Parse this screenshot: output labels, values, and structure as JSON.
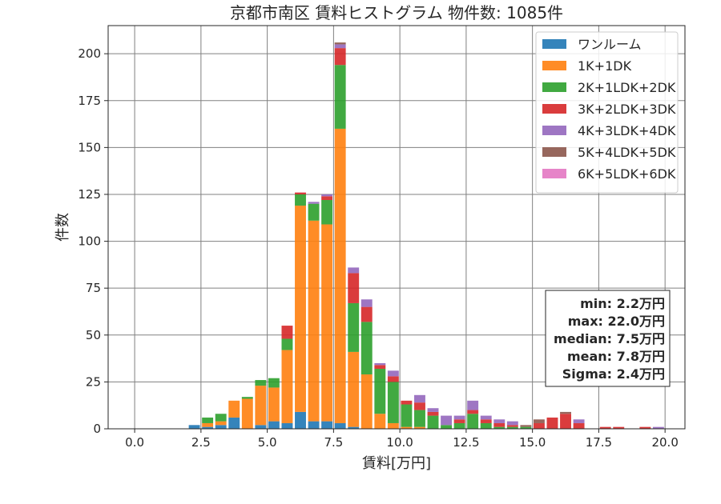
{
  "chart_data": {
    "type": "bar",
    "stacked": true,
    "title": "京都市南区 賃料ヒストグラム 物件数: 1085件",
    "xlabel": "賃料[万円]",
    "ylabel": "件数",
    "xlim": [
      -1.0,
      20.75
    ],
    "ylim": [
      0,
      215
    ],
    "xticks": [
      0.0,
      2.5,
      5.0,
      7.5,
      10.0,
      12.5,
      15.0,
      17.5,
      20.0
    ],
    "xtick_labels": [
      "0.0",
      "2.5",
      "5.0",
      "7.5",
      "10.0",
      "12.5",
      "15.0",
      "17.5",
      "20.0"
    ],
    "yticks": [
      0,
      25,
      50,
      75,
      100,
      125,
      150,
      175,
      200
    ],
    "ytick_labels": [
      "0",
      "25",
      "50",
      "75",
      "100",
      "125",
      "150",
      "175",
      "200"
    ],
    "bin_width": 0.5,
    "bins": [
      0.0,
      0.5,
      1.0,
      1.5,
      2.0,
      2.5,
      3.0,
      3.5,
      4.0,
      4.5,
      5.0,
      5.5,
      6.0,
      6.5,
      7.0,
      7.5,
      8.0,
      8.5,
      9.0,
      9.5,
      10.0,
      10.5,
      11.0,
      11.5,
      12.0,
      12.5,
      13.0,
      13.5,
      14.0,
      14.5,
      15.0,
      15.5,
      16.0,
      16.5,
      17.0,
      17.5,
      18.0,
      18.5,
      19.0,
      19.5
    ],
    "grid": true,
    "legend_position": "top-right",
    "series": [
      {
        "name": "ワンルーム",
        "color": "#1f77b4",
        "values": [
          0,
          0,
          0,
          0,
          2,
          1,
          2,
          6,
          0,
          2,
          4,
          3,
          9,
          4,
          4,
          3,
          1,
          0,
          0,
          0,
          0,
          0,
          0,
          0,
          0,
          0,
          0,
          0,
          0,
          0,
          0,
          0,
          0,
          0,
          0,
          0,
          0,
          0,
          0,
          0
        ]
      },
      {
        "name": "1K+1DK",
        "color": "#ff7f0e",
        "values": [
          0,
          0,
          0,
          0,
          0,
          2,
          2,
          9,
          16,
          21,
          18,
          39,
          110,
          107,
          105,
          157,
          40,
          29,
          8,
          3,
          1,
          1,
          0,
          0,
          0,
          0,
          0,
          0,
          0,
          0,
          0,
          0,
          0,
          0,
          0,
          0,
          0,
          0,
          0,
          0
        ]
      },
      {
        "name": "2K+1LDK+2DK",
        "color": "#2ca02c",
        "values": [
          0,
          0,
          0,
          0,
          0,
          3,
          4,
          0,
          1,
          3,
          5,
          6,
          6,
          9,
          13,
          34,
          26,
          28,
          24,
          22,
          12,
          9,
          7,
          2,
          3,
          8,
          3,
          1,
          1,
          1,
          0,
          0,
          0,
          0,
          0,
          0,
          0,
          0,
          0,
          0
        ]
      },
      {
        "name": "3K+2LDK+3DK",
        "color": "#d62728",
        "values": [
          0,
          0,
          0,
          0,
          0,
          0,
          0,
          0,
          0,
          0,
          0,
          7,
          1,
          0,
          2,
          9,
          16,
          8,
          2,
          3,
          2,
          4,
          2,
          0,
          2,
          2,
          2,
          2,
          1,
          0,
          3,
          6,
          8,
          3,
          0,
          1,
          1,
          0,
          1,
          0
        ]
      },
      {
        "name": "4K+3LDK+4DK",
        "color": "#9467bd",
        "values": [
          0,
          0,
          0,
          0,
          0,
          0,
          0,
          0,
          0,
          0,
          0,
          0,
          0,
          1,
          1,
          2,
          3,
          4,
          1,
          3,
          0,
          4,
          2,
          5,
          2,
          5,
          2,
          2,
          2,
          0,
          0,
          0,
          0,
          2,
          0,
          0,
          0,
          0,
          0,
          1
        ]
      },
      {
        "name": "5K+4LDK+5DK",
        "color": "#8c564b",
        "values": [
          0,
          0,
          0,
          0,
          0,
          0,
          0,
          0,
          0,
          0,
          0,
          0,
          0,
          0,
          0,
          1,
          0,
          0,
          0,
          0,
          0,
          0,
          0,
          0,
          0,
          0,
          0,
          0,
          0,
          1,
          2,
          0,
          1,
          0,
          0,
          0,
          0,
          0,
          0,
          0
        ]
      },
      {
        "name": "6K+5LDK+6DK",
        "color": "#e377c2",
        "values": [
          0,
          0,
          0,
          0,
          0,
          0,
          0,
          0,
          0,
          0,
          0,
          0,
          0,
          0,
          0,
          0,
          0,
          0,
          0,
          0,
          0,
          0,
          0,
          0,
          0,
          0,
          0,
          0,
          0,
          0,
          0,
          0,
          0,
          0,
          0,
          0,
          0,
          0,
          0,
          0
        ]
      }
    ],
    "stats_box": [
      "min: 2.2万円",
      "max: 22.0万円",
      "median: 7.5万円",
      "mean: 7.8万円",
      "Sigma: 2.4万円"
    ]
  }
}
